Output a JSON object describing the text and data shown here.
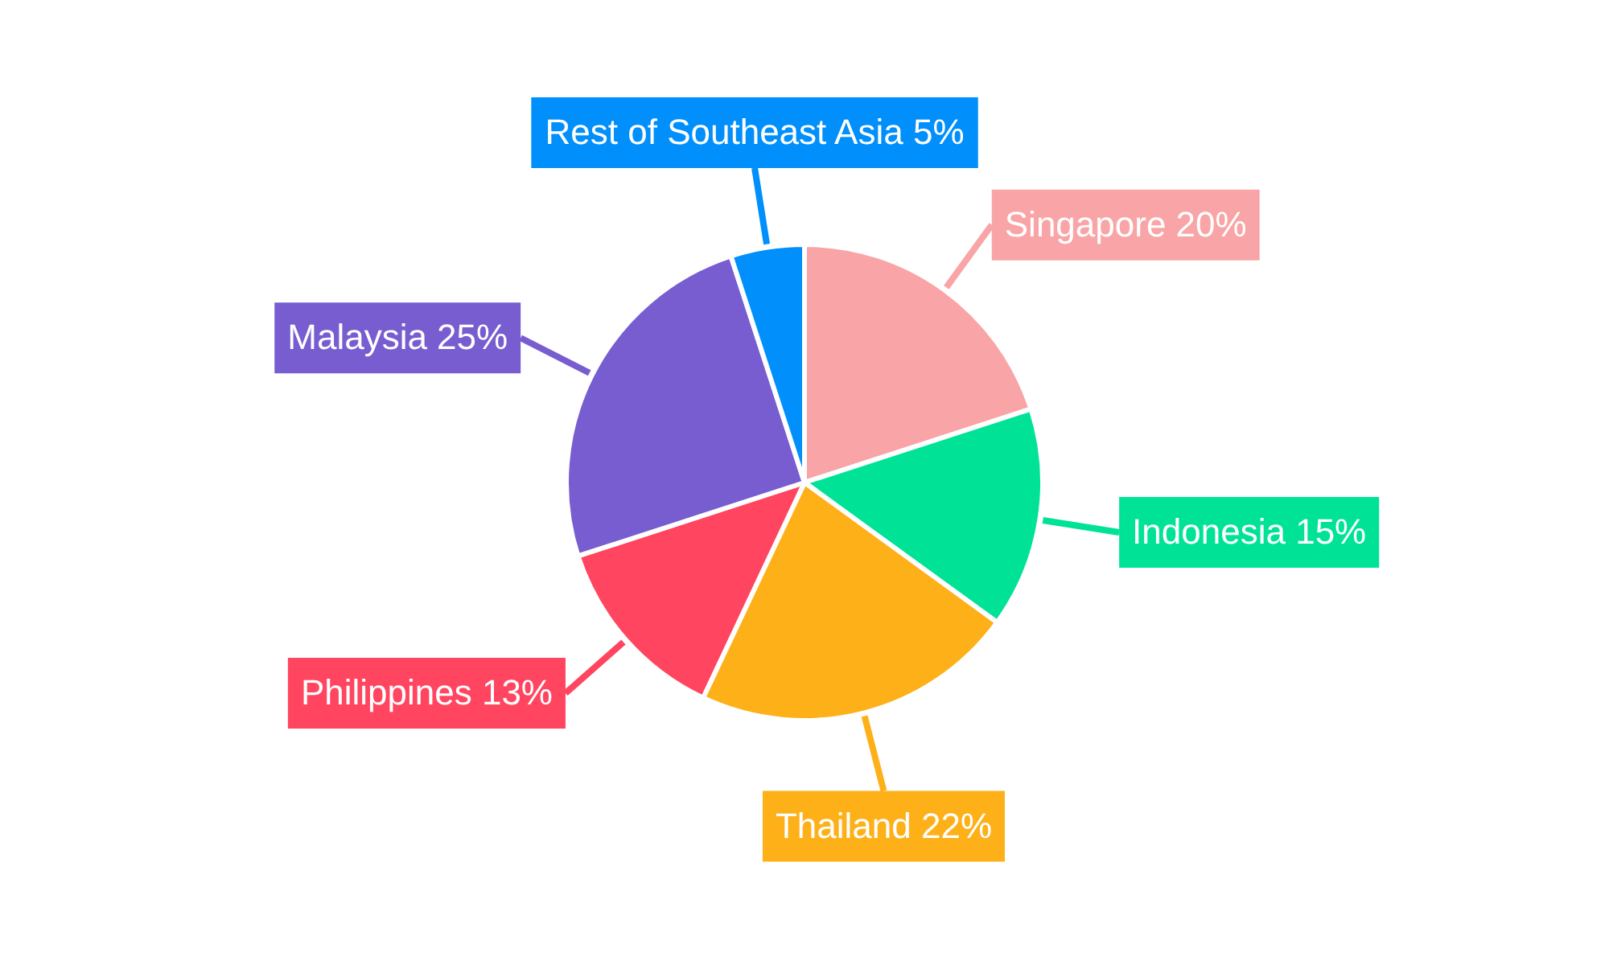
{
  "chart_data": {
    "type": "pie",
    "categories": [
      "Singapore",
      "Indonesia",
      "Thailand",
      "Philippines",
      "Malaysia",
      "Rest of Southeast Asia"
    ],
    "values": [
      20,
      15,
      22,
      13,
      25,
      5
    ],
    "colors": [
      "#f9a4a6",
      "#00e396",
      "#feb019",
      "#ff4560",
      "#775dd0",
      "#008ffb"
    ],
    "value_labels": [
      "20%",
      "15%",
      "22%",
      "13%",
      "25%",
      "5%"
    ],
    "legend": false
  }
}
